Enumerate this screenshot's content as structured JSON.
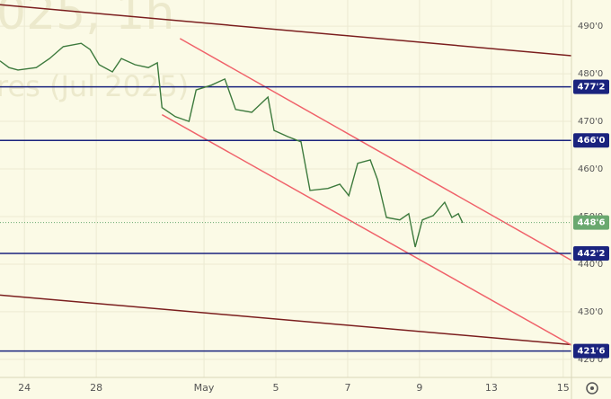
{
  "chart_data": {
    "type": "line",
    "watermark": [
      "025, 1h",
      "res (Jul 2025)"
    ],
    "x": [
      -0.68,
      -0.43,
      -0.18,
      0.33,
      0.7,
      1.08,
      1.58,
      1.83,
      2.08,
      2.45,
      2.7,
      3.08,
      3.45,
      3.7,
      3.83,
      4.2,
      4.58,
      4.78,
      5.2,
      5.58,
      5.88,
      6.33,
      6.78,
      6.95,
      7.33,
      7.7,
      7.95,
      8.45,
      8.78,
      9.03,
      9.28,
      9.63,
      9.83,
      10.08,
      10.45,
      10.7,
      10.88,
      11.08,
      11.38,
      11.7,
      11.9,
      12.08,
      12.2
    ],
    "series": [
      {
        "color": "#3d7a3d",
        "values": [
          482.7,
          481.3,
          480.8,
          481.3,
          483.2,
          485.7,
          486.4,
          485.1,
          481.9,
          480.4,
          483.2,
          481.9,
          481.3,
          482.3,
          472.9,
          471,
          470,
          476.6,
          477.6,
          478.9,
          472.5,
          471.9,
          475.1,
          468.1,
          466.8,
          465.7,
          455.5,
          455.9,
          456.8,
          454.4,
          461.2,
          461.9,
          457.8,
          449.8,
          449.3,
          450.6,
          443.6,
          449.3,
          450.2,
          453,
          449.8,
          450.6,
          448.7
        ]
      }
    ],
    "xlim": [
      -0.68,
      15.23
    ],
    "ylim": [
      416.2,
      495.5
    ],
    "xticks": [
      {
        "value": 0,
        "label": "24"
      },
      {
        "value": 2,
        "label": "28"
      },
      {
        "value": 5,
        "label": "May"
      },
      {
        "value": 7,
        "label": "5"
      },
      {
        "value": 9,
        "label": "7"
      },
      {
        "value": 11,
        "label": "9"
      },
      {
        "value": 13,
        "label": "13"
      },
      {
        "value": 15,
        "label": "15"
      }
    ],
    "yticks": [
      {
        "value": 420,
        "label": "420'0"
      },
      {
        "value": 430,
        "label": "430'0"
      },
      {
        "value": 440,
        "label": "440'0"
      },
      {
        "value": 450,
        "label": "450'0"
      },
      {
        "value": 460,
        "label": "460'0"
      },
      {
        "value": 470,
        "label": "470'0"
      },
      {
        "value": 480,
        "label": "480'0"
      },
      {
        "value": 490,
        "label": "490'0"
      }
    ],
    "grid": true,
    "hlines": [
      {
        "value": 477.25,
        "label": "477'2",
        "color": "#1a237e"
      },
      {
        "value": 466,
        "label": "466'0",
        "color": "#1a237e"
      },
      {
        "value": 442.25,
        "label": "442'2",
        "color": "#1a237e"
      },
      {
        "value": 421.75,
        "label": "421'6",
        "color": "#1a237e"
      }
    ],
    "last_price": {
      "value": 448.75,
      "label": "448'6",
      "color": "#6aa86f"
    },
    "trendlines": [
      {
        "color": "#7b1e1e",
        "x": [
          -0.68,
          15.23
        ],
        "values": [
          494.5,
          483.8
        ]
      },
      {
        "color": "#7b1e1e",
        "x": [
          -0.68,
          15.23
        ],
        "values": [
          433.5,
          423.1
        ]
      },
      {
        "color": "#f0626a",
        "x": [
          4.33,
          15.23
        ],
        "values": [
          487.4,
          440.8
        ]
      },
      {
        "color": "#f0626a",
        "x": [
          3.83,
          15.23
        ],
        "values": [
          471.4,
          423
        ]
      }
    ]
  }
}
